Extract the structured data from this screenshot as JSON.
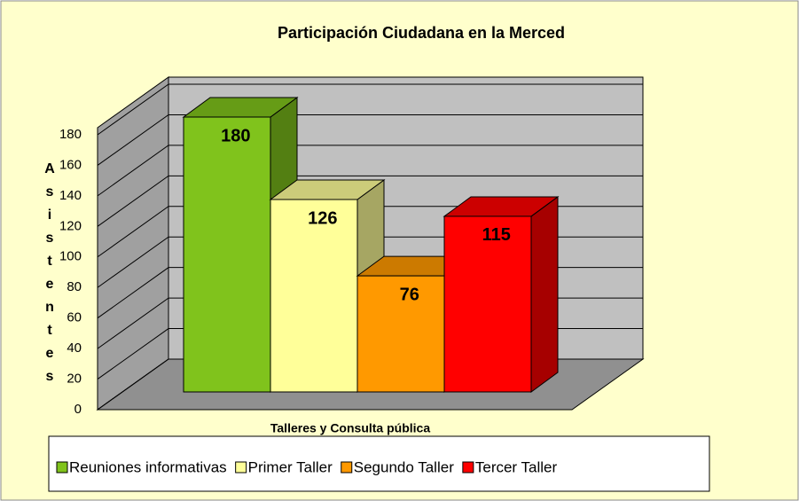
{
  "chart_data": {
    "type": "bar3d",
    "title": "Participación Ciudadana en la Merced",
    "x_label": "Talleres y Consulta pública",
    "y_label": "Asistentes",
    "series": [
      {
        "name": "Reuniones informativas",
        "color": "#80c31c",
        "values": [
          180
        ]
      },
      {
        "name": "Primer Taller",
        "color": "#ffff99",
        "values": [
          126
        ]
      },
      {
        "name": "Segundo Taller",
        "color": "#ff9900",
        "values": [
          76
        ]
      },
      {
        "name": "Tercer Taller",
        "color": "#ff0000",
        "values": [
          115
        ]
      }
    ],
    "ylim": [
      0,
      180
    ],
    "yticks": [
      0,
      20,
      40,
      60,
      80,
      100,
      120,
      140,
      160,
      180
    ],
    "grid": true,
    "legend": "bottom"
  }
}
